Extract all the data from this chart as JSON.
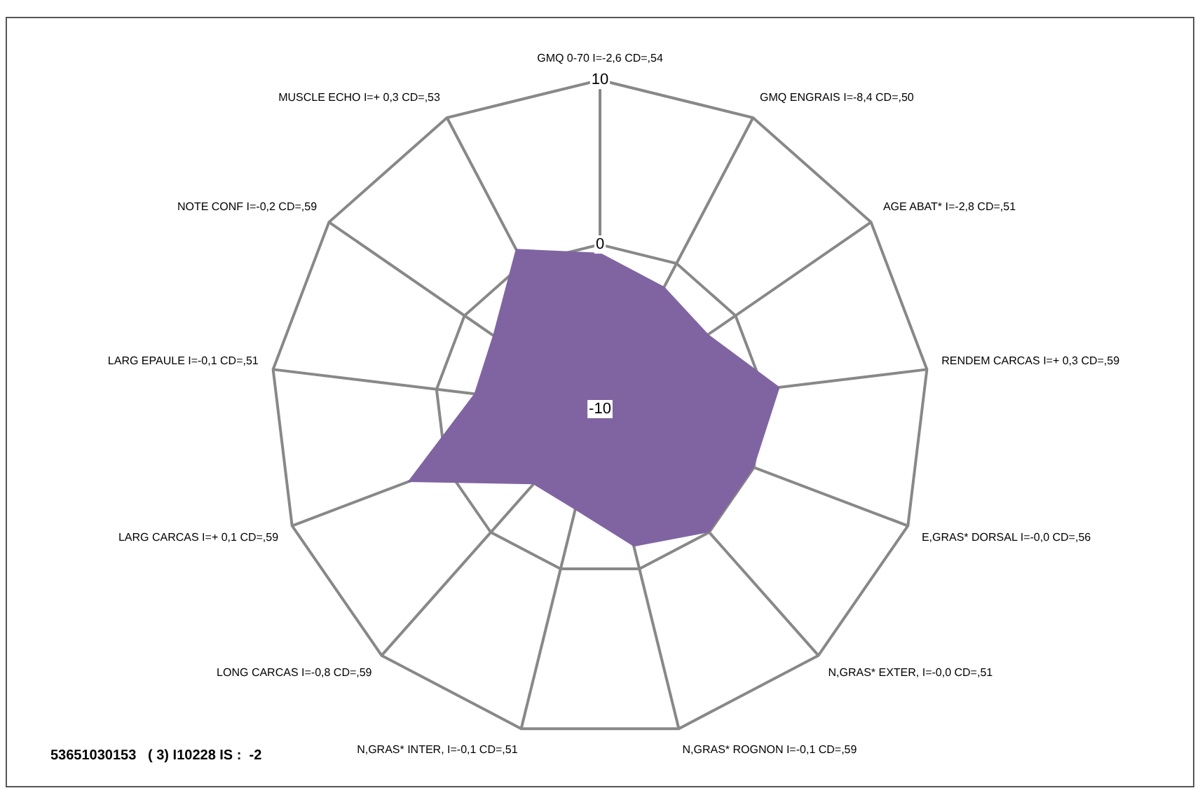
{
  "chart_data": {
    "type": "radar",
    "categories": [
      "GMQ 0-70 I=-2,6 CD=,54",
      "GMQ ENGRAIS I=-8,4 CD=,50",
      "AGE ABAT* I=-2,8 CD=,51",
      "RENDEM CARCAS I=+ 0,3 CD=,59",
      "E,GRAS* DORSAL I=-0,0 CD=,56",
      "N,GRAS* EXTER, I=-0,0 CD=,51",
      "N,GRAS* ROGNON I=-0,1 CD=,59",
      "N,GRAS* INTER, I=-0,1 CD=,51",
      "LONG CARCAS I=-0,8 CD=,59",
      "LARG CARCAS I=+ 0,1 CD=,59",
      "LARG EPAULE I=-0,1 CD=,51",
      "NOTE CONF I=-0,2 CD=,59",
      "MUSCLE ECHO I=+ 0,3 CD=,53"
    ],
    "series": [
      {
        "color": "#8064a2",
        "values": [
          -0.5,
          -1.6,
          -2.0,
          1.0,
          0,
          0,
          -1.4,
          -3.7,
          -3.9,
          2.5,
          -2.3,
          -2.1,
          1.0
        ]
      }
    ],
    "ylim": [
      -10,
      10
    ],
    "yticks": [
      -10,
      0,
      10
    ],
    "grid": true,
    "legend": false,
    "marker": "none",
    "annotations": [
      "53651030153   ( 3) I10228 IS :  -2"
    ]
  }
}
